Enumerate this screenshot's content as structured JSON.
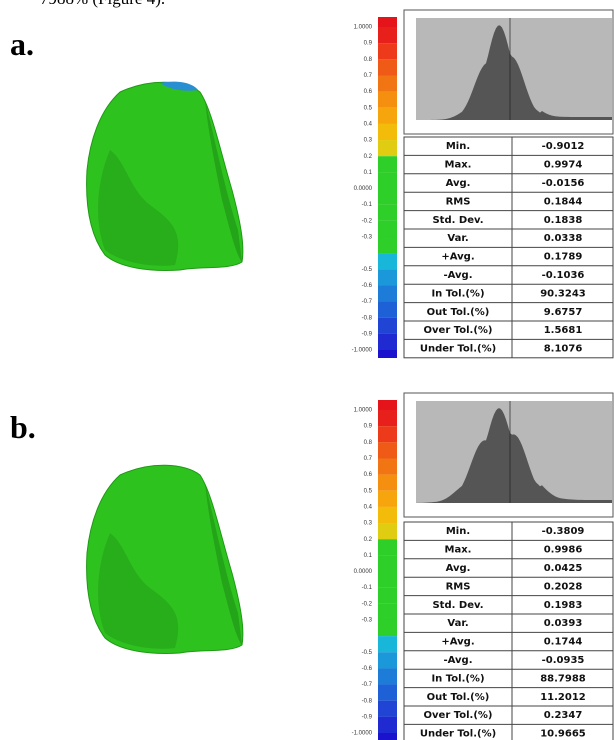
{
  "caption_fragment": "7988% (Figure 4).",
  "panels": [
    {
      "label": "a.",
      "scale": {
        "labels": [
          "1.0000",
          "0.9",
          "0.8",
          "0.7",
          "0.6",
          "0.5",
          "0.4",
          "0.3",
          "0.2",
          "0.1",
          "0.0000",
          "-0.1",
          "-0.2",
          "-0.3",
          "-0.5",
          "-0.6",
          "-0.7",
          "-0.8",
          "-0.9",
          "-1.0000"
        ]
      },
      "table": {
        "rows": [
          [
            "Min.",
            "-0.9012"
          ],
          [
            "Max.",
            "0.9974"
          ],
          [
            "Avg.",
            "-0.0156"
          ],
          [
            "RMS",
            "0.1844"
          ],
          [
            "Std. Dev.",
            "0.1838"
          ],
          [
            "Var.",
            "0.0338"
          ],
          [
            "+Avg.",
            "0.1789"
          ],
          [
            "-Avg.",
            "-0.1036"
          ],
          [
            "In Tol.(%)",
            "90.3243"
          ],
          [
            "Out Tol.(%)",
            "9.6757"
          ],
          [
            "Over Tol.(%)",
            "1.5681"
          ],
          [
            "Under Tol.(%)",
            "8.1076"
          ]
        ]
      }
    },
    {
      "label": "b.",
      "scale": {
        "labels": [
          "1.0000",
          "0.9",
          "0.8",
          "0.7",
          "0.6",
          "0.5",
          "0.4",
          "0.3",
          "0.2",
          "0.1",
          "0.0000",
          "-0.1",
          "-0.2",
          "-0.3",
          "-0.5",
          "-0.6",
          "-0.7",
          "-0.8",
          "-0.9",
          "-1.0000"
        ]
      },
      "table": {
        "rows": [
          [
            "Min.",
            "-0.3809"
          ],
          [
            "Max.",
            "0.9986"
          ],
          [
            "Avg.",
            "0.0425"
          ],
          [
            "RMS",
            "0.2028"
          ],
          [
            "Std. Dev.",
            "0.1983"
          ],
          [
            "Var.",
            "0.0393"
          ],
          [
            "+Avg.",
            "0.1744"
          ],
          [
            "-Avg.",
            "-0.0935"
          ],
          [
            "In Tol.(%)",
            "88.7988"
          ],
          [
            "Out Tol.(%)",
            "11.2012"
          ],
          [
            "Over Tol.(%)",
            "0.2347"
          ],
          [
            "Under Tol.(%)",
            "10.9665"
          ]
        ]
      }
    }
  ]
}
